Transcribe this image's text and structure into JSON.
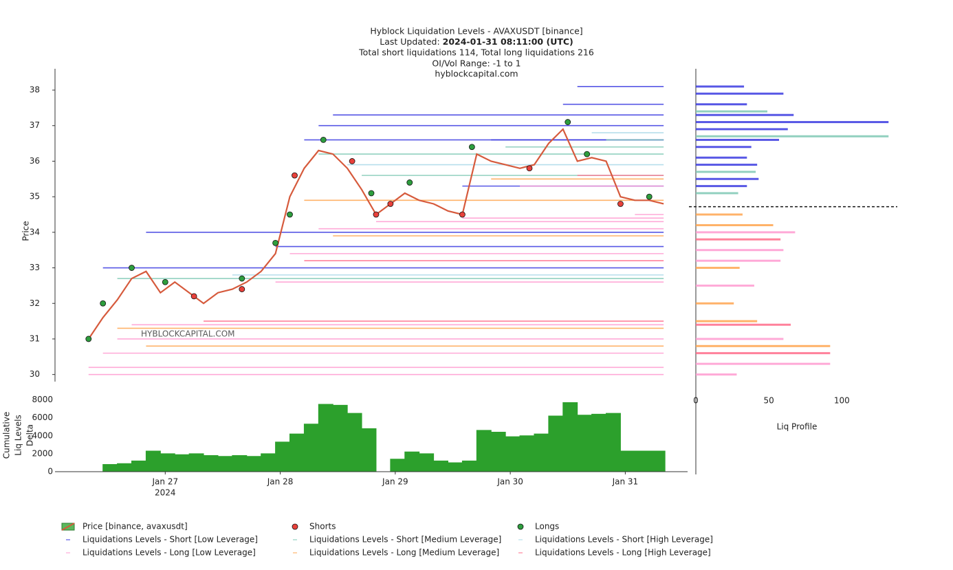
{
  "title_lines": [
    "Hyblock Liquidation Levels - AVAXUSDT [binance]",
    "Total short liquidations 114, Total long liquidations 216",
    "OI/Vol Range: -1 to 1",
    "hyblockcapital.com"
  ],
  "last_updated_label": "Last Updated: ",
  "last_updated": "2024-01-31 08:11:00 (UTC)",
  "watermark": "HYBLOCKCAPITAL.COM",
  "chart_data": [
    {
      "type": "line",
      "y_label": "Price",
      "xlim": [
        "2024-01-26T01:00",
        "2024-01-31T13:00"
      ],
      "ylim": [
        29.8,
        38.6
      ],
      "yticks": [
        30,
        31,
        32,
        33,
        34,
        35,
        36,
        37,
        38
      ],
      "current_price": 34.72,
      "series": [
        {
          "name": "Price [binance, avaxusdt]",
          "mode": "line",
          "color": "#d65a3c",
          "legend_fill": "#5cb85c",
          "x": [
            "2024-01-26T08:00",
            "2024-01-26T11:00",
            "2024-01-26T14:00",
            "2024-01-26T17:00",
            "2024-01-26T20:00",
            "2024-01-26T23:00",
            "2024-01-27T02:00",
            "2024-01-27T05:00",
            "2024-01-27T08:00",
            "2024-01-27T11:00",
            "2024-01-27T14:00",
            "2024-01-27T17:00",
            "2024-01-27T20:00",
            "2024-01-27T23:00",
            "2024-01-28T02:00",
            "2024-01-28T05:00",
            "2024-01-28T08:00",
            "2024-01-28T11:00",
            "2024-01-28T14:00",
            "2024-01-28T17:00",
            "2024-01-28T20:00",
            "2024-01-28T23:00",
            "2024-01-29T02:00",
            "2024-01-29T05:00",
            "2024-01-29T08:00",
            "2024-01-29T11:00",
            "2024-01-29T14:00",
            "2024-01-29T17:00",
            "2024-01-29T20:00",
            "2024-01-29T23:00",
            "2024-01-30T02:00",
            "2024-01-30T05:00",
            "2024-01-30T08:00",
            "2024-01-30T11:00",
            "2024-01-30T14:00",
            "2024-01-30T17:00",
            "2024-01-30T20:00",
            "2024-01-30T23:00",
            "2024-01-31T02:00",
            "2024-01-31T05:00",
            "2024-01-31T08:00"
          ],
          "values": [
            31.0,
            31.6,
            32.1,
            32.7,
            32.9,
            32.3,
            32.6,
            32.3,
            32.0,
            32.3,
            32.4,
            32.6,
            32.9,
            33.4,
            35.0,
            35.8,
            36.3,
            36.2,
            35.8,
            35.2,
            34.5,
            34.8,
            35.1,
            34.9,
            34.8,
            34.6,
            34.5,
            36.2,
            36.0,
            35.9,
            35.8,
            35.9,
            36.5,
            36.9,
            36.0,
            36.1,
            36.0,
            35.0,
            34.9,
            34.9,
            34.8
          ]
        },
        {
          "name": "Shorts",
          "mode": "markers",
          "color": "#e8413b",
          "x": [
            "2024-01-27T06:00",
            "2024-01-27T16:00",
            "2024-01-28T03:00",
            "2024-01-28T15:00",
            "2024-01-28T20:00",
            "2024-01-28T23:00",
            "2024-01-29T14:00",
            "2024-01-30T04:00",
            "2024-01-30T23:00"
          ],
          "values": [
            32.2,
            32.4,
            35.6,
            36.0,
            34.5,
            34.8,
            34.5,
            35.8,
            34.8
          ]
        },
        {
          "name": "Longs",
          "mode": "markers",
          "color": "#2e9e3e",
          "x": [
            "2024-01-26T08:00",
            "2024-01-26T11:00",
            "2024-01-26T17:00",
            "2024-01-27T00:00",
            "2024-01-27T16:00",
            "2024-01-27T23:00",
            "2024-01-28T02:00",
            "2024-01-28T09:00",
            "2024-01-28T19:00",
            "2024-01-29T03:00",
            "2024-01-29T16:00",
            "2024-01-30T12:00",
            "2024-01-30T16:00",
            "2024-01-31T05:00"
          ],
          "values": [
            31.0,
            32.0,
            33.0,
            32.6,
            32.7,
            33.7,
            34.5,
            36.6,
            35.1,
            35.4,
            36.4,
            37.1,
            36.2,
            35.0
          ]
        },
        {
          "name": "Liquidations Levels - Short [Low Leverage]",
          "mode": "level",
          "color": "#3a3ae0",
          "x": [
            "2024-01-26T20:00",
            "2024-01-26T11:00",
            "2024-01-27T23:00",
            "2024-01-28T08:00",
            "2024-01-28T05:00",
            "2024-01-28T11:00",
            "2024-01-29T20:00",
            "2024-01-30T11:00",
            "2024-01-30T14:00",
            "2024-01-29T14:00"
          ],
          "values": [
            34.0,
            33.0,
            33.6,
            37.0,
            36.6,
            37.3,
            36.6,
            37.6,
            38.1,
            35.3
          ]
        },
        {
          "name": "Liquidations Levels - Short [Medium Leverage]",
          "mode": "level",
          "color": "#7ec8b4",
          "x": [
            "2024-01-26T14:00",
            "2024-01-28T08:00",
            "2024-01-29T23:00",
            "2024-01-30T20:00",
            "2024-01-28T17:00"
          ],
          "values": [
            32.7,
            36.2,
            36.4,
            36.6,
            35.6
          ]
        },
        {
          "name": "Liquidations Levels - Short [High Leverage]",
          "mode": "level",
          "color": "#a8d8e8",
          "x": [
            "2024-01-27T14:00",
            "2024-01-28T14:00",
            "2024-01-30T17:00"
          ],
          "values": [
            32.8,
            35.9,
            36.8
          ]
        },
        {
          "name": "Liquidations Levels - Long [Low Leverage]",
          "mode": "level",
          "color": "#ff9ad0",
          "x": [
            "2024-01-26T08:00",
            "2024-01-26T08:00",
            "2024-01-26T11:00",
            "2024-01-26T14:00",
            "2024-01-26T17:00",
            "2024-01-27T23:00",
            "2024-01-28T02:00",
            "2024-01-28T08:00",
            "2024-01-28T20:00",
            "2024-01-29T14:00",
            "2024-01-30T02:00",
            "2024-01-31T02:00"
          ],
          "values": [
            30.0,
            30.2,
            30.6,
            31.0,
            31.4,
            32.6,
            33.4,
            34.1,
            34.3,
            34.4,
            35.3,
            34.5
          ]
        },
        {
          "name": "Liquidations Levels - Long [Medium Leverage]",
          "mode": "level",
          "color": "#ffa54f",
          "x": [
            "2024-01-26T14:00",
            "2024-01-28T05:00",
            "2024-01-29T20:00",
            "2024-01-28T11:00",
            "2024-01-26T20:00"
          ],
          "values": [
            31.3,
            34.9,
            35.5,
            33.9,
            30.8
          ]
        },
        {
          "name": "Liquidations Levels - Long [High Leverage]",
          "mode": "level",
          "color": "#ff6b8a",
          "x": [
            "2024-01-27T08:00",
            "2024-01-28T05:00",
            "2024-01-30T14:00"
          ],
          "values": [
            31.5,
            33.2,
            35.6
          ]
        }
      ]
    },
    {
      "type": "area",
      "y_label": [
        "Cumulative",
        "Liq Levels",
        "Delta"
      ],
      "color": "#2ca02c",
      "xlim": [
        "2024-01-26T01:00",
        "2024-01-31T13:00"
      ],
      "ylim": [
        0,
        8500
      ],
      "yticks": [
        0,
        2000,
        4000,
        6000,
        8000
      ],
      "xticks": [
        {
          "value": "2024-01-27T00:00",
          "label": "Jan 27"
        },
        {
          "value": "2024-01-28T00:00",
          "label": "Jan 28"
        },
        {
          "value": "2024-01-29T00:00",
          "label": "Jan 29"
        },
        {
          "value": "2024-01-30T00:00",
          "label": "Jan 30"
        },
        {
          "value": "2024-01-31T00:00",
          "label": "Jan 31"
        }
      ],
      "x_year_label": "2024",
      "x": [
        "2024-01-26T08:00",
        "2024-01-26T11:00",
        "2024-01-26T14:00",
        "2024-01-26T17:00",
        "2024-01-26T20:00",
        "2024-01-26T23:00",
        "2024-01-27T02:00",
        "2024-01-27T05:00",
        "2024-01-27T08:00",
        "2024-01-27T11:00",
        "2024-01-27T14:00",
        "2024-01-27T17:00",
        "2024-01-27T20:00",
        "2024-01-27T23:00",
        "2024-01-28T02:00",
        "2024-01-28T05:00",
        "2024-01-28T08:00",
        "2024-01-28T11:00",
        "2024-01-28T14:00",
        "2024-01-28T17:00",
        "2024-01-28T20:00",
        "2024-01-28T23:00",
        "2024-01-29T02:00",
        "2024-01-29T05:00",
        "2024-01-29T08:00",
        "2024-01-29T11:00",
        "2024-01-29T14:00",
        "2024-01-29T17:00",
        "2024-01-29T20:00",
        "2024-01-29T23:00",
        "2024-01-30T02:00",
        "2024-01-30T05:00",
        "2024-01-30T08:00",
        "2024-01-30T11:00",
        "2024-01-30T14:00",
        "2024-01-30T17:00",
        "2024-01-30T20:00",
        "2024-01-30T23:00",
        "2024-01-31T02:00",
        "2024-01-31T05:00",
        "2024-01-31T08:00"
      ],
      "values": [
        0,
        800,
        900,
        1200,
        2300,
        2000,
        1900,
        2000,
        1800,
        1700,
        1800,
        1700,
        2000,
        3300,
        4200,
        5300,
        7500,
        7400,
        6500,
        4800,
        0,
        1400,
        2200,
        2000,
        1200,
        1000,
        1200,
        4600,
        4400,
        3900,
        4000,
        4200,
        6200,
        7700,
        6300,
        6400,
        6500,
        2300,
        2300,
        2300,
        2300
      ]
    },
    {
      "type": "barh",
      "x_label": "Liq Profile",
      "xlim": [
        0,
        138
      ],
      "xticks": [
        0,
        50,
        100
      ],
      "bars": [
        {
          "price": 38.1,
          "value": 33,
          "color": "#3a3ae0"
        },
        {
          "price": 37.9,
          "value": 60,
          "color": "#3a3ae0"
        },
        {
          "price": 37.6,
          "value": 35,
          "color": "#3a3ae0"
        },
        {
          "price": 37.4,
          "value": 49,
          "color": "#7ec8b4"
        },
        {
          "price": 37.3,
          "value": 67,
          "color": "#3a3ae0"
        },
        {
          "price": 37.1,
          "value": 132,
          "color": "#3a3ae0"
        },
        {
          "price": 36.9,
          "value": 63,
          "color": "#3a3ae0"
        },
        {
          "price": 36.7,
          "value": 132,
          "color": "#7ec8b4"
        },
        {
          "price": 36.6,
          "value": 57,
          "color": "#3a3ae0"
        },
        {
          "price": 36.4,
          "value": 38,
          "color": "#3a3ae0"
        },
        {
          "price": 36.1,
          "value": 35,
          "color": "#3a3ae0"
        },
        {
          "price": 35.9,
          "value": 42,
          "color": "#3a3ae0"
        },
        {
          "price": 35.7,
          "value": 41,
          "color": "#7ec8b4"
        },
        {
          "price": 35.5,
          "value": 43,
          "color": "#3a3ae0"
        },
        {
          "price": 35.3,
          "value": 35,
          "color": "#3a3ae0"
        },
        {
          "price": 35.1,
          "value": 29,
          "color": "#7ec8b4"
        },
        {
          "price": 34.5,
          "value": 32,
          "color": "#ffa54f"
        },
        {
          "price": 34.2,
          "value": 53,
          "color": "#ffa54f"
        },
        {
          "price": 34.0,
          "value": 68,
          "color": "#ff9ad0"
        },
        {
          "price": 33.8,
          "value": 58,
          "color": "#ff6b8a"
        },
        {
          "price": 33.5,
          "value": 60,
          "color": "#ff9ad0"
        },
        {
          "price": 33.2,
          "value": 58,
          "color": "#ff9ad0"
        },
        {
          "price": 33.0,
          "value": 30,
          "color": "#ffa54f"
        },
        {
          "price": 32.5,
          "value": 40,
          "color": "#ff9ad0"
        },
        {
          "price": 32.0,
          "value": 26,
          "color": "#ffa54f"
        },
        {
          "price": 31.5,
          "value": 42,
          "color": "#ffa54f"
        },
        {
          "price": 31.4,
          "value": 65,
          "color": "#ff6b8a"
        },
        {
          "price": 31.0,
          "value": 60,
          "color": "#ff9ad0"
        },
        {
          "price": 30.8,
          "value": 92,
          "color": "#ffa54f"
        },
        {
          "price": 30.6,
          "value": 92,
          "color": "#ff6b8a"
        },
        {
          "price": 30.3,
          "value": 92,
          "color": "#ff9ad0"
        },
        {
          "price": 30.0,
          "value": 28,
          "color": "#ff9ad0"
        }
      ]
    }
  ]
}
